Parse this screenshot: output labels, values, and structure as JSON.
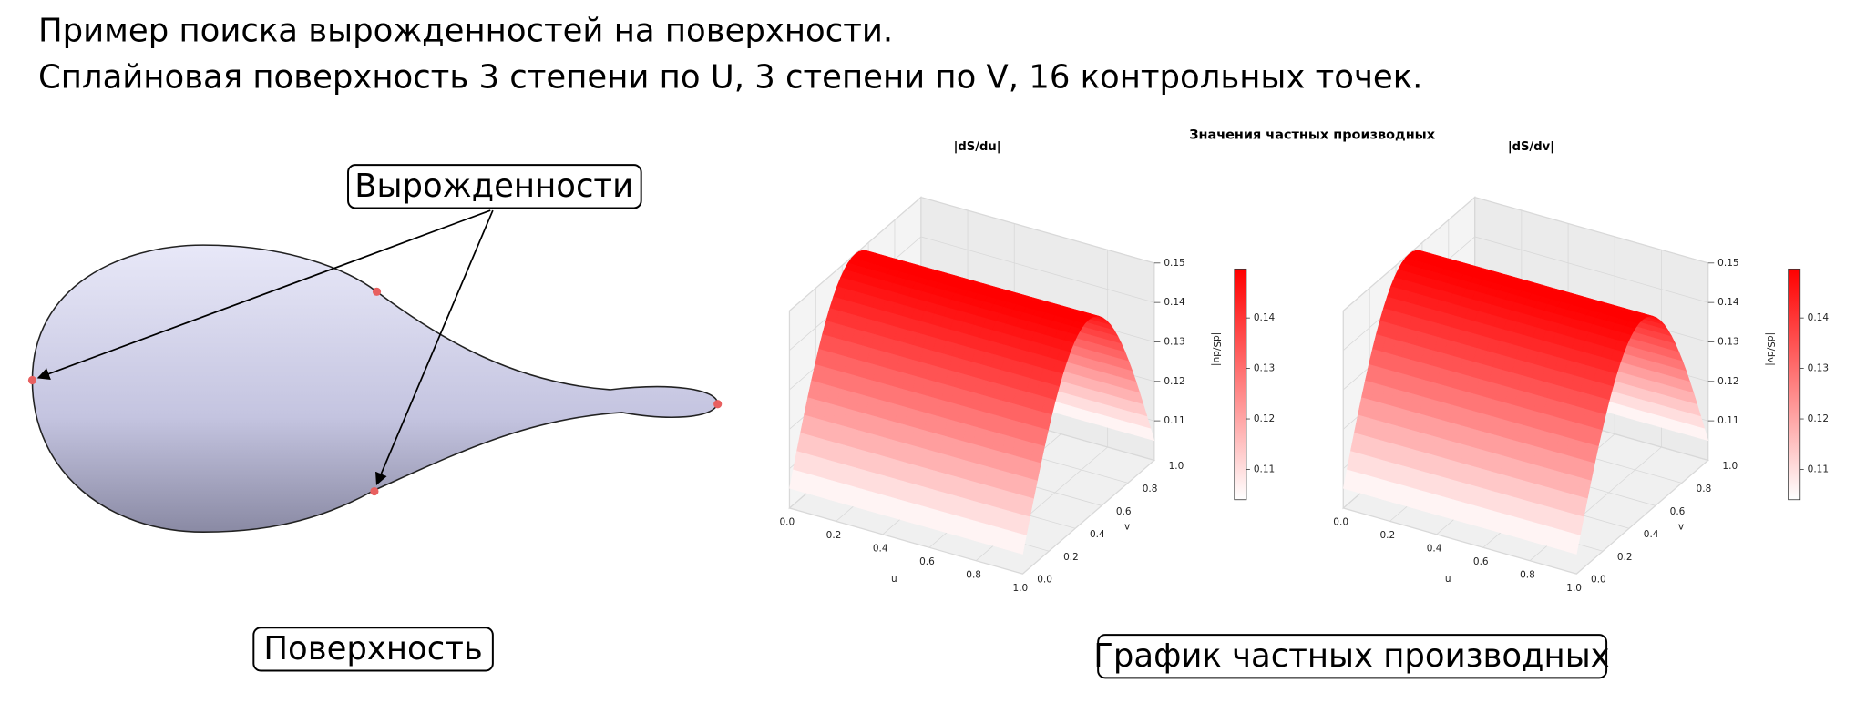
{
  "header": {
    "lines": [
      "Пример поиска вырожденностей на поверхности.",
      "Сплайновая поверхность 3 степени по U, 3 степени по V, 16 контрольных точек."
    ]
  },
  "surface_panel": {
    "callout": "Вырожденности",
    "caption": "Поверхность"
  },
  "plots_panel": {
    "title": "Значения частных производных",
    "caption": "График частных производных",
    "plots": [
      {
        "title": "|dS/du|",
        "x_label": "u",
        "y_label": "v",
        "z_label": "|dS/du|",
        "x_ticks": [
          "0.0",
          "0.2",
          "0.4",
          "0.6",
          "0.8",
          "1.0"
        ],
        "y_ticks": [
          "0.0",
          "0.2",
          "0.4",
          "0.6",
          "0.8",
          "1.0"
        ],
        "z_ticks": [
          "0.11",
          "0.12",
          "0.13",
          "0.14",
          "0.15"
        ],
        "colorbar_ticks": [
          "0.11",
          "0.12",
          "0.13",
          "0.14"
        ]
      },
      {
        "title": "|dS/dv|",
        "x_label": "u",
        "y_label": "v",
        "z_label": "|dS/dv|",
        "x_ticks": [
          "0.0",
          "0.2",
          "0.4",
          "0.6",
          "0.8",
          "1.0"
        ],
        "y_ticks": [
          "0.0",
          "0.2",
          "0.4",
          "0.6",
          "0.8",
          "1.0"
        ],
        "z_ticks": [
          "0.11",
          "0.12",
          "0.13",
          "0.14",
          "0.15"
        ],
        "colorbar_ticks": [
          "0.11",
          "0.12",
          "0.13",
          "0.14"
        ]
      }
    ]
  }
}
